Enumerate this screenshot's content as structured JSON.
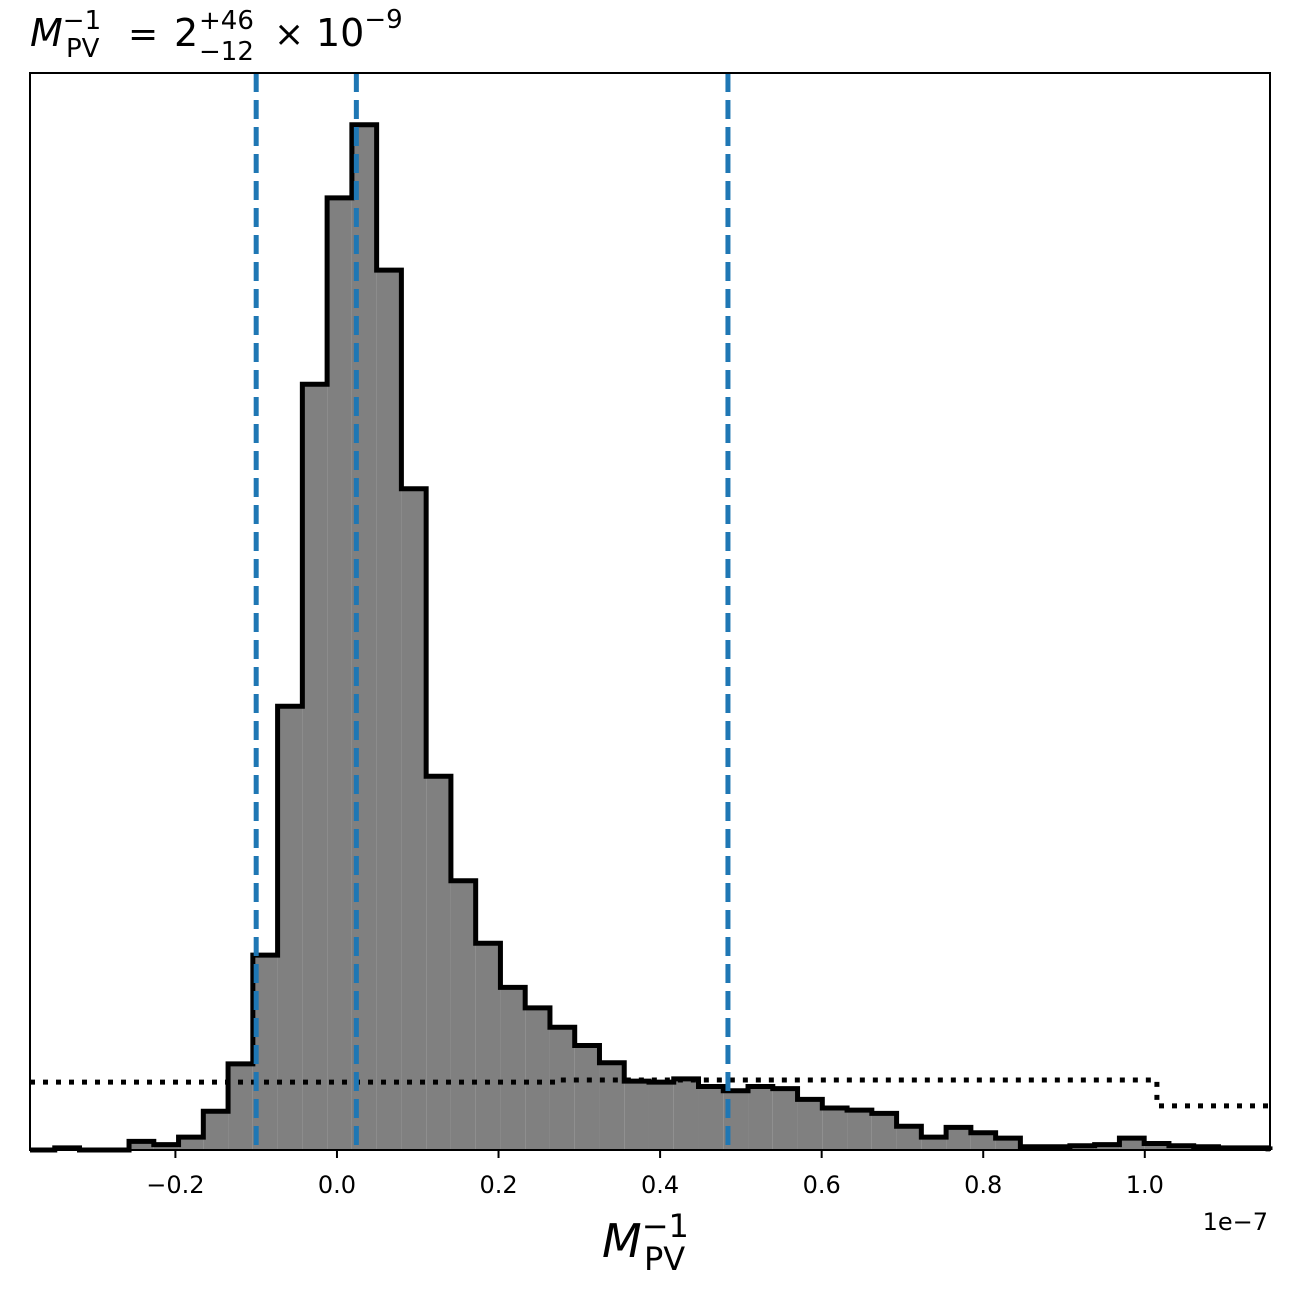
{
  "chart_data": {
    "type": "histogram",
    "title": {
      "lhs_base": "M",
      "lhs_sup": "−1",
      "lhs_sub": "PV",
      "equals": "=",
      "value": "2",
      "plus": "+46",
      "minus": "−12",
      "times": "×",
      "power_base": "10",
      "power_exp": "−9"
    },
    "xlabel": {
      "base": "M",
      "sup": "−1",
      "sub": "PV"
    },
    "x_offset_label": "1e−7",
    "xlim": [
      -0.38,
      1.155
    ],
    "ylim": [
      0,
      1.0
    ],
    "x_ticks": [
      -0.2,
      0.0,
      0.2,
      0.4,
      0.6,
      0.8,
      1.0
    ],
    "x_tick_labels": [
      "−0.2",
      "0.0",
      "0.2",
      "0.4",
      "0.6",
      "0.8",
      "1.0"
    ],
    "bin_start": -0.38,
    "bin_width": 0.03065,
    "histogram_counts": [
      0.0,
      0.002,
      0.0,
      0.0,
      0.008,
      0.005,
      0.012,
      0.036,
      0.08,
      0.181,
      0.412,
      0.711,
      0.884,
      0.952,
      0.817,
      0.614,
      0.347,
      0.25,
      0.192,
      0.151,
      0.132,
      0.114,
      0.097,
      0.081,
      0.064,
      0.063,
      0.066,
      0.059,
      0.055,
      0.059,
      0.057,
      0.047,
      0.039,
      0.037,
      0.034,
      0.022,
      0.012,
      0.021,
      0.016,
      0.011,
      0.003,
      0.003,
      0.004,
      0.005,
      0.011,
      0.006,
      0.004,
      0.003,
      0.002,
      0.002,
      0.001
    ],
    "prior_dotted": [
      {
        "x0": -0.38,
        "x1": 0.27,
        "y": 0.063
      },
      {
        "x0": 0.27,
        "x1": 1.015,
        "y": 0.065
      },
      {
        "x0": 1.015,
        "x1": 1.155,
        "y": 0.041
      }
    ],
    "quantile_lines": [
      -0.1,
      0.024,
      0.484
    ],
    "colors": {
      "fill": "#808080",
      "edge": "#000000",
      "quantile": "#1f77b4",
      "prior": "#000000"
    }
  }
}
